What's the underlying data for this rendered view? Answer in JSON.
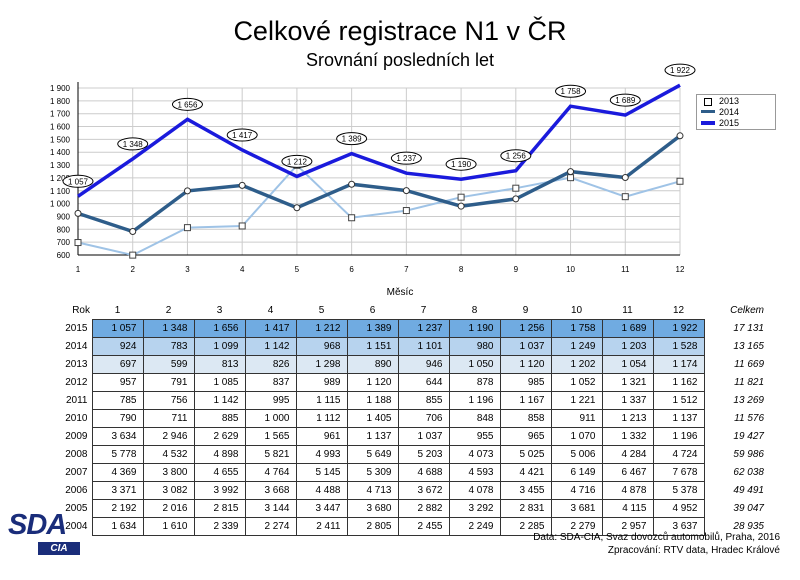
{
  "page": {
    "title": "Celkové registrace N1 v ČR",
    "subtitle": "Srovnání posledních let",
    "x_axis_label": "Měsíc",
    "source_line1": "Data: SDA-CIA, Svaz dovozců automobilů, Praha, 2016",
    "source_line2": "Zpracování: RTV data, Hradec Králové",
    "logo_text": "SDA",
    "logo_sub": "CIA"
  },
  "colors": {
    "s2015": "#1a1adc",
    "s2014": "#2e5d8a",
    "s2013": "#9fc3e6",
    "grid": "#cccccc"
  },
  "chart_data": {
    "type": "line",
    "title": "Celkové registrace N1 v ČR",
    "subtitle": "Srovnání posledních let",
    "xlabel": "Měsíc",
    "ylabel": "",
    "x": [
      1,
      2,
      3,
      4,
      5,
      6,
      7,
      8,
      9,
      10,
      11,
      12
    ],
    "ylim": [
      600,
      1900
    ],
    "yticks": [
      600,
      700,
      800,
      900,
      1000,
      1100,
      1200,
      1300,
      1400,
      1500,
      1600,
      1700,
      1800,
      1900
    ],
    "ytick_labels": [
      "600",
      "700",
      "800",
      "900",
      "1 000",
      "1 100",
      "1 200",
      "1 300",
      "1 400",
      "1 500",
      "1 600",
      "1 700",
      "1 800",
      "1 900"
    ],
    "grid": true,
    "legend_position": "top-right",
    "series": [
      {
        "name": "2013",
        "values": [
          697,
          599,
          813,
          826,
          1298,
          890,
          946,
          1050,
          1120,
          1202,
          1054,
          1174
        ],
        "marker": "square"
      },
      {
        "name": "2014",
        "values": [
          924,
          783,
          1099,
          1142,
          968,
          1151,
          1101,
          980,
          1037,
          1249,
          1203,
          1528
        ],
        "marker": "circle"
      },
      {
        "name": "2015",
        "values": [
          1057,
          1348,
          1656,
          1417,
          1212,
          1389,
          1237,
          1190,
          1256,
          1758,
          1689,
          1922
        ],
        "marker": "none",
        "data_labels": [
          "1 057",
          "1 348",
          "1 656",
          "1 417",
          "1 212",
          "1 389",
          "1 237",
          "1 190",
          "1 256",
          "1 758",
          "1 689",
          "1 922"
        ]
      }
    ]
  },
  "table": {
    "header_rok": "Rok",
    "header_total": "Celkem",
    "months": [
      "1",
      "2",
      "3",
      "4",
      "5",
      "6",
      "7",
      "8",
      "9",
      "10",
      "11",
      "12"
    ],
    "rows": [
      {
        "year": "2015",
        "cells": [
          "1 057",
          "1 348",
          "1 656",
          "1 417",
          "1 212",
          "1 389",
          "1 237",
          "1 190",
          "1 256",
          "1 758",
          "1 689",
          "1 922"
        ],
        "total": "17 131"
      },
      {
        "year": "2014",
        "cells": [
          "924",
          "783",
          "1 099",
          "1 142",
          "968",
          "1 151",
          "1 101",
          "980",
          "1 037",
          "1 249",
          "1 203",
          "1 528"
        ],
        "total": "13 165"
      },
      {
        "year": "2013",
        "cells": [
          "697",
          "599",
          "813",
          "826",
          "1 298",
          "890",
          "946",
          "1 050",
          "1 120",
          "1 202",
          "1 054",
          "1 174"
        ],
        "total": "11 669"
      },
      {
        "year": "2012",
        "cells": [
          "957",
          "791",
          "1 085",
          "837",
          "989",
          "1 120",
          "644",
          "878",
          "985",
          "1 052",
          "1 321",
          "1 162"
        ],
        "total": "11 821"
      },
      {
        "year": "2011",
        "cells": [
          "785",
          "756",
          "1 142",
          "995",
          "1 115",
          "1 188",
          "855",
          "1 196",
          "1 167",
          "1 221",
          "1 337",
          "1 512"
        ],
        "total": "13 269"
      },
      {
        "year": "2010",
        "cells": [
          "790",
          "711",
          "885",
          "1 000",
          "1 112",
          "1 405",
          "706",
          "848",
          "858",
          "911",
          "1 213",
          "1 137"
        ],
        "total": "11 576"
      },
      {
        "year": "2009",
        "cells": [
          "3 634",
          "2 946",
          "2 629",
          "1 565",
          "961",
          "1 137",
          "1 037",
          "955",
          "965",
          "1 070",
          "1 332",
          "1 196"
        ],
        "total": "19 427"
      },
      {
        "year": "2008",
        "cells": [
          "5 778",
          "4 532",
          "4 898",
          "5 821",
          "4 993",
          "5 649",
          "5 203",
          "4 073",
          "5 025",
          "5 006",
          "4 284",
          "4 724"
        ],
        "total": "59 986"
      },
      {
        "year": "2007",
        "cells": [
          "4 369",
          "3 800",
          "4 655",
          "4 764",
          "5 145",
          "5 309",
          "4 688",
          "4 593",
          "4 421",
          "6 149",
          "6 467",
          "7 678"
        ],
        "total": "62 038"
      },
      {
        "year": "2006",
        "cells": [
          "3 371",
          "3 082",
          "3 992",
          "3 668",
          "4 488",
          "4 713",
          "3 672",
          "4 078",
          "3 455",
          "4 716",
          "4 878",
          "5 378"
        ],
        "total": "49 491"
      },
      {
        "year": "2005",
        "cells": [
          "2 192",
          "2 016",
          "2 815",
          "3 144",
          "3 447",
          "3 680",
          "2 882",
          "3 292",
          "2 831",
          "3 681",
          "4 115",
          "4 952"
        ],
        "total": "39 047"
      },
      {
        "year": "2004",
        "cells": [
          "1 634",
          "1 610",
          "2 339",
          "2 274",
          "2 411",
          "2 805",
          "2 455",
          "2 249",
          "2 285",
          "2 279",
          "2 957",
          "3 637"
        ],
        "total": "28 935"
      }
    ]
  }
}
